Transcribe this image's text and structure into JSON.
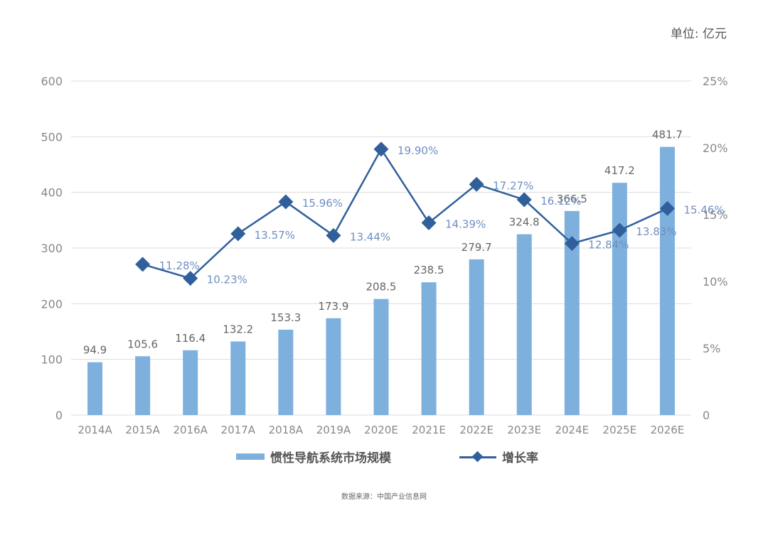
{
  "unit_label": "单位: 亿元",
  "source": "数据来源：中国产业信息网",
  "colors": {
    "bar": "#7EB0DE",
    "line": "#305F9B",
    "grid": "#DDDDDD",
    "axis_text": "#888888",
    "bar_label": "#666666",
    "line_label": "#6F8FC3"
  },
  "chart_data": {
    "type": "bar+line",
    "categories": [
      "2014A",
      "2015A",
      "2016A",
      "2017A",
      "2018A",
      "2019A",
      "2020E",
      "2021E",
      "2022E",
      "2023E",
      "2024E",
      "2025E",
      "2026E"
    ],
    "series": [
      {
        "name": "惯性导航系统市场规模",
        "type": "bar",
        "axis": "left",
        "values": [
          94.9,
          105.6,
          116.4,
          132.2,
          153.3,
          173.9,
          208.5,
          238.5,
          279.7,
          324.8,
          366.5,
          417.2,
          481.7
        ],
        "labels": [
          "94.9",
          "105.6",
          "116.4",
          "132.2",
          "153.3",
          "173.9",
          "208.5",
          "238.5",
          "279.7",
          "324.8",
          "366.5",
          "417.2",
          "481.7"
        ]
      },
      {
        "name": "增长率",
        "type": "line",
        "axis": "right",
        "values": [
          null,
          11.28,
          10.23,
          13.57,
          15.96,
          13.44,
          19.9,
          14.39,
          17.27,
          16.12,
          12.84,
          13.83,
          15.46
        ],
        "labels": [
          "",
          "11.28%",
          "10.23%",
          "13.57%",
          "15.96%",
          "13.44%",
          "19.90%",
          "14.39%",
          "17.27%",
          "16.12%",
          "12.84%",
          "13.83%",
          "15.46%"
        ]
      }
    ],
    "y_left": {
      "min": 0,
      "max": 600,
      "ticks": [
        "0",
        "100",
        "200",
        "300",
        "400",
        "500",
        "600"
      ]
    },
    "y_right": {
      "min": 0,
      "max": 25,
      "ticks": [
        "0",
        "5%",
        "10%",
        "15%",
        "20%",
        "25%"
      ]
    },
    "grid": true,
    "legend_position": "bottom"
  }
}
